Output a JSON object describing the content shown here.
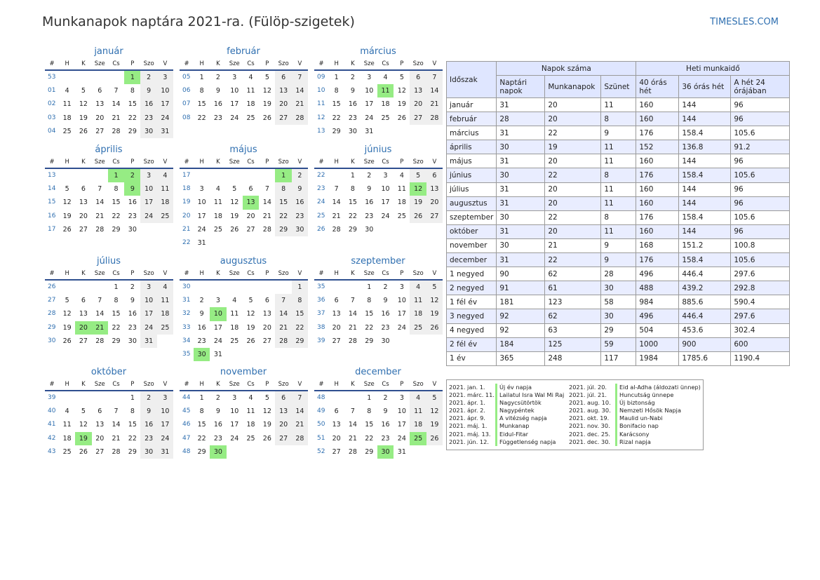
{
  "title": "Munkanapok naptára 2021-ra. (Fülöp-szigetek)",
  "brand": "TIMESLES.COM",
  "weekday_headers": [
    "#",
    "H",
    "K",
    "Sze",
    "Cs",
    "P",
    "Szo",
    "V"
  ],
  "months": [
    {
      "name": "január",
      "weeks": [
        "53",
        "01",
        "02",
        "03",
        "04"
      ],
      "first_weekday": 4,
      "days": 31,
      "holidays": [
        1
      ]
    },
    {
      "name": "február",
      "weeks": [
        "05",
        "06",
        "07",
        "08"
      ],
      "first_weekday": 0,
      "days": 28,
      "holidays": []
    },
    {
      "name": "március",
      "weeks": [
        "09",
        "10",
        "11",
        "12",
        "13"
      ],
      "first_weekday": 0,
      "days": 31,
      "holidays": [
        11
      ]
    },
    {
      "name": "április",
      "weeks": [
        "13",
        "14",
        "15",
        "16",
        "17"
      ],
      "first_weekday": 3,
      "days": 30,
      "holidays": [
        1,
        2,
        9
      ]
    },
    {
      "name": "május",
      "weeks": [
        "17",
        "18",
        "19",
        "20",
        "21",
        "22"
      ],
      "first_weekday": 5,
      "days": 31,
      "holidays": [
        1,
        13
      ]
    },
    {
      "name": "június",
      "weeks": [
        "22",
        "23",
        "24",
        "25",
        "26"
      ],
      "first_weekday": 1,
      "days": 30,
      "holidays": [
        12
      ]
    },
    {
      "name": "július",
      "weeks": [
        "26",
        "27",
        "28",
        "29",
        "30"
      ],
      "first_weekday": 3,
      "days": 31,
      "holidays": [
        20,
        21
      ]
    },
    {
      "name": "augusztus",
      "weeks": [
        "30",
        "31",
        "32",
        "33",
        "34",
        "35"
      ],
      "first_weekday": 6,
      "days": 31,
      "holidays": [
        10,
        30
      ]
    },
    {
      "name": "szeptember",
      "weeks": [
        "35",
        "36",
        "37",
        "38",
        "39"
      ],
      "first_weekday": 2,
      "days": 30,
      "holidays": []
    },
    {
      "name": "október",
      "weeks": [
        "39",
        "40",
        "41",
        "42",
        "43"
      ],
      "first_weekday": 4,
      "days": 31,
      "holidays": [
        19
      ]
    },
    {
      "name": "november",
      "weeks": [
        "44",
        "45",
        "46",
        "47",
        "48"
      ],
      "first_weekday": 0,
      "days": 30,
      "holidays": [
        30
      ]
    },
    {
      "name": "december",
      "weeks": [
        "48",
        "49",
        "50",
        "51",
        "52"
      ],
      "first_weekday": 2,
      "days": 31,
      "holidays": [
        25,
        30
      ]
    }
  ],
  "summary": {
    "col_period": "Időszak",
    "group_days": "Napok száma",
    "group_hours": "Heti munkaidő",
    "sub_headers": [
      "Naptári napok",
      "Munkanapok",
      "Szünet",
      "40 órás hét",
      "36 órás hét",
      "A hét 24 órájában"
    ],
    "rows": [
      [
        "január",
        "31",
        "20",
        "11",
        "160",
        "144",
        "96"
      ],
      [
        "február",
        "28",
        "20",
        "8",
        "160",
        "144",
        "96"
      ],
      [
        "március",
        "31",
        "22",
        "9",
        "176",
        "158.4",
        "105.6"
      ],
      [
        "április",
        "30",
        "19",
        "11",
        "152",
        "136.8",
        "91.2"
      ],
      [
        "május",
        "31",
        "20",
        "11",
        "160",
        "144",
        "96"
      ],
      [
        "június",
        "30",
        "22",
        "8",
        "176",
        "158.4",
        "105.6"
      ],
      [
        "július",
        "31",
        "20",
        "11",
        "160",
        "144",
        "96"
      ],
      [
        "augusztus",
        "31",
        "20",
        "11",
        "160",
        "144",
        "96"
      ],
      [
        "szeptember",
        "30",
        "22",
        "8",
        "176",
        "158.4",
        "105.6"
      ],
      [
        "október",
        "31",
        "20",
        "11",
        "160",
        "144",
        "96"
      ],
      [
        "november",
        "30",
        "21",
        "9",
        "168",
        "151.2",
        "100.8"
      ],
      [
        "december",
        "31",
        "22",
        "9",
        "176",
        "158.4",
        "105.6"
      ],
      [
        "1 negyed",
        "90",
        "62",
        "28",
        "496",
        "446.4",
        "297.6"
      ],
      [
        "2 negyed",
        "91",
        "61",
        "30",
        "488",
        "439.2",
        "292.8"
      ],
      [
        "1 fél év",
        "181",
        "123",
        "58",
        "984",
        "885.6",
        "590.4"
      ],
      [
        "3 negyed",
        "92",
        "62",
        "30",
        "496",
        "446.4",
        "297.6"
      ],
      [
        "4 negyed",
        "92",
        "63",
        "29",
        "504",
        "453.6",
        "302.4"
      ],
      [
        "2 fél év",
        "184",
        "125",
        "59",
        "1000",
        "900",
        "600"
      ],
      [
        "1 év",
        "365",
        "248",
        "117",
        "1984",
        "1785.6",
        "1190.4"
      ]
    ]
  },
  "holidays_left": [
    {
      "date": "2021. jan. 1.",
      "name": "Új év napja"
    },
    {
      "date": "2021. márc. 11.",
      "name": "Lailatul Isra Wal Mi Raj"
    },
    {
      "date": "2021. ápr. 1.",
      "name": "Nagycsütörtök"
    },
    {
      "date": "2021. ápr. 2.",
      "name": "Nagypéntek"
    },
    {
      "date": "2021. ápr. 9.",
      "name": "A vitézség napja"
    },
    {
      "date": "2021. máj. 1.",
      "name": "Munkanap"
    },
    {
      "date": "2021. máj. 13.",
      "name": "Eidul-Fitar"
    },
    {
      "date": "2021. jún. 12.",
      "name": "Függetlenség napja"
    }
  ],
  "holidays_right": [
    {
      "date": "2021. júl. 20.",
      "name": "Eid al-Adha (áldozati ünnep)"
    },
    {
      "date": "2021. júl. 21.",
      "name": "Huncutság ünnepe"
    },
    {
      "date": "2021. aug. 10.",
      "name": "Új biztonság"
    },
    {
      "date": "2021. aug. 30.",
      "name": "Nemzeti Hősök Napja"
    },
    {
      "date": "2021. okt. 19.",
      "name": "Maulid un-Nabi"
    },
    {
      "date": "2021. nov. 30.",
      "name": "Bonifacio nap"
    },
    {
      "date": "2021. dec. 25.",
      "name": "Karácsony"
    },
    {
      "date": "2021. dec. 30.",
      "name": "Rizal napja"
    }
  ],
  "colors": {
    "accent": "#2f6fb0",
    "holiday": "#96ec84",
    "weekend": "#efefef",
    "table_header": "#dfe6ff",
    "table_alt": "#e9edff"
  }
}
